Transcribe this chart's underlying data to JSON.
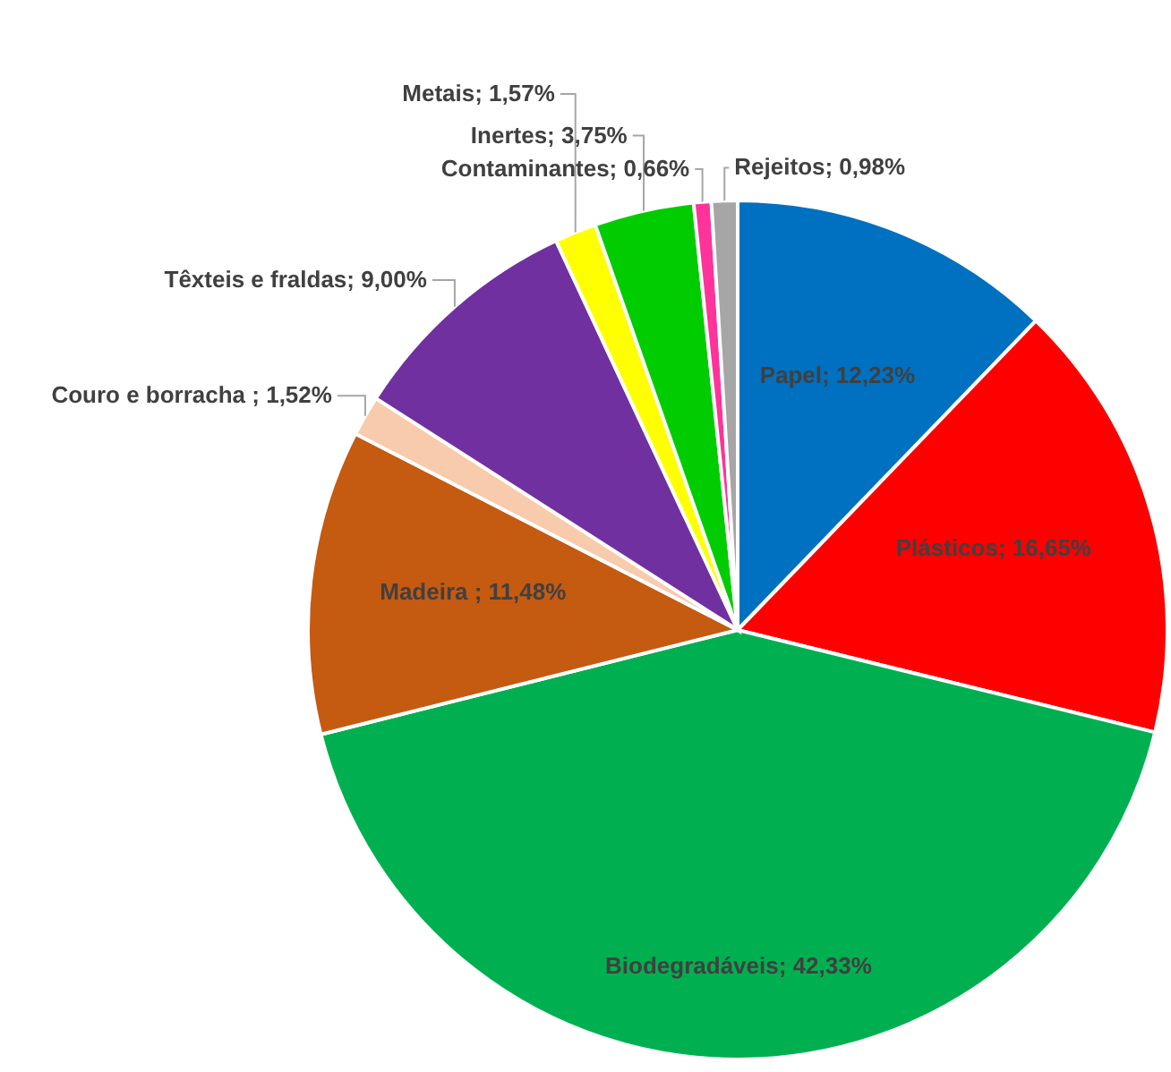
{
  "chart_data": {
    "type": "pie",
    "categories": [
      "Papel",
      "Plásticos",
      "Biodegradáveis",
      "Madeira ",
      "Couro e borracha ",
      "Têxteis e fraldas",
      "Metais",
      "Inertes",
      "Contaminantes",
      "Rejeitos"
    ],
    "values": [
      12.23,
      16.65,
      42.33,
      11.48,
      1.52,
      9.0,
      1.57,
      3.75,
      0.66,
      0.98
    ],
    "colors": [
      "#0070c0",
      "#ff0000",
      "#00b050",
      "#c55a11",
      "#f8cbad",
      "#7030a0",
      "#ffff00",
      "#00cc00",
      "#ff3399",
      "#a6a6a6"
    ],
    "value_labels": [
      "12,23%",
      "16,65%",
      "42,33%",
      "11,48%",
      "1,52%",
      "9,00%",
      "1,57%",
      "3,75%",
      "0,66%",
      "0,98%"
    ]
  }
}
